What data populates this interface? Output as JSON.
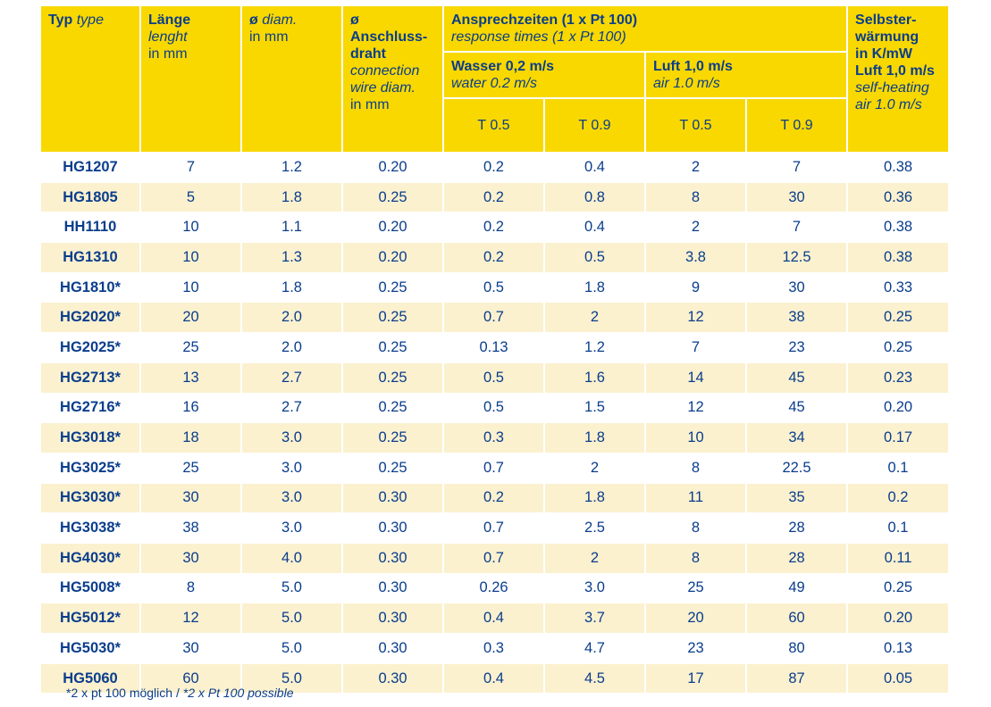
{
  "header": {
    "typ_de": "Typ",
    "typ_en": "type",
    "laenge_de": "Länge",
    "laenge_en": "lenght",
    "laenge_unit": "in mm",
    "diam_symbol": "ø",
    "diam_en": "diam.",
    "diam_unit": "in mm",
    "wire_de_1": "ø Anschluss-",
    "wire_de_2": "draht",
    "wire_en_1": "connection",
    "wire_en_2": "wire diam.",
    "wire_unit": "in mm",
    "resp_de": "Ansprechzeiten (1 x Pt 100)",
    "resp_en": "response times (1 x Pt 100)",
    "water_de": "Wasser 0,2 m/s",
    "water_en": "water 0.2 m/s",
    "air_de": "Luft 1,0 m/s",
    "air_en": "air 1.0 m/s",
    "t05_water": "T 0.5",
    "t09_water": "T 0.9",
    "t05_air": "T 0.5",
    "t09_air": "T 0.9",
    "self_de_1": "Selbster-",
    "self_de_2": "wärmung",
    "self_de_3": "in K/mW",
    "self_de_4": "Luft 1,0 m/s",
    "self_en_1": "self-heating",
    "self_en_2": "air 1.0 m/s"
  },
  "rows": [
    [
      "HG1207",
      "7",
      "1.2",
      "0.20",
      "0.2",
      "0.4",
      "2",
      "7",
      "0.38"
    ],
    [
      "HG1805",
      "5",
      "1.8",
      "0.25",
      "0.2",
      "0.8",
      "8",
      "30",
      "0.36"
    ],
    [
      "HH1110",
      "10",
      "1.1",
      "0.20",
      "0.2",
      "0.4",
      "2",
      "7",
      "0.38"
    ],
    [
      "HG1310",
      "10",
      "1.3",
      "0.20",
      "0.2",
      "0.5",
      "3.8",
      "12.5",
      "0.38"
    ],
    [
      "HG1810*",
      "10",
      "1.8",
      "0.25",
      "0.5",
      "1.8",
      "9",
      "30",
      "0.33"
    ],
    [
      "HG2020*",
      "20",
      "2.0",
      "0.25",
      "0.7",
      "2",
      "12",
      "38",
      "0.25"
    ],
    [
      "HG2025*",
      "25",
      "2.0",
      "0.25",
      "0.13",
      "1.2",
      "7",
      "23",
      "0.25"
    ],
    [
      "HG2713*",
      "13",
      "2.7",
      "0.25",
      "0.5",
      "1.6",
      "14",
      "45",
      "0.23"
    ],
    [
      "HG2716*",
      "16",
      "2.7",
      "0.25",
      "0.5",
      "1.5",
      "12",
      "45",
      "0.20"
    ],
    [
      "HG3018*",
      "18",
      "3.0",
      "0.25",
      "0.3",
      "1.8",
      "10",
      "34",
      "0.17"
    ],
    [
      "HG3025*",
      "25",
      "3.0",
      "0.25",
      "0.7",
      "2",
      "8",
      "22.5",
      "0.1"
    ],
    [
      "HG3030*",
      "30",
      "3.0",
      "0.30",
      "0.2",
      "1.8",
      "11",
      "35",
      "0.2"
    ],
    [
      "HG3038*",
      "38",
      "3.0",
      "0.30",
      "0.7",
      "2.5",
      "8",
      "28",
      "0.1"
    ],
    [
      "HG4030*",
      "30",
      "4.0",
      "0.30",
      "0.7",
      "2",
      "8",
      "28",
      "0.11"
    ],
    [
      "HG5008*",
      "8",
      "5.0",
      "0.30",
      "0.26",
      "3.0",
      "25",
      "49",
      "0.25"
    ],
    [
      "HG5012*",
      "12",
      "5.0",
      "0.30",
      "0.4",
      "3.7",
      "20",
      "60",
      "0.20"
    ],
    [
      "HG5030*",
      "30",
      "5.0",
      "0.30",
      "0.3",
      "4.7",
      "23",
      "80",
      "0.13"
    ],
    [
      "HG5060",
      "60",
      "5.0",
      "0.30",
      "0.4",
      "4.5",
      "17",
      "87",
      "0.05"
    ]
  ],
  "footnote": {
    "de": "*2 x pt 100 möglich /",
    "en": "*2 x Pt 100 possible"
  },
  "colors": {
    "header_bg": "#f9d800",
    "stripe_bg": "#fbf1cf",
    "text": "#0a3d8c"
  }
}
